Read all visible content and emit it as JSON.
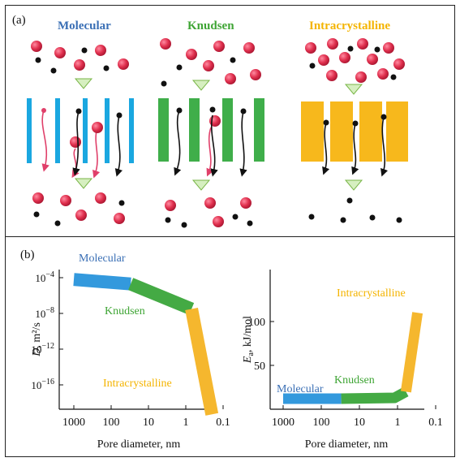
{
  "panel_a": {
    "label": "(a)",
    "mechanisms": [
      {
        "name": "Molecular",
        "color": "#3a6fb5"
      },
      {
        "name": "Knudsen",
        "color": "#3fa535"
      },
      {
        "name": "Intracrystalline",
        "color": "#f4b400"
      }
    ]
  },
  "panel_b": {
    "label": "(b)",
    "colors": {
      "molecular": "#3399dd",
      "knudsen": "#44aa44",
      "intracrystalline": "#f5b72e"
    },
    "text_colors": {
      "molecular": "#3a6fb5",
      "knudsen": "#3fa535",
      "intracrystalline": "#f4b400"
    }
  },
  "chart_data": [
    {
      "type": "line",
      "xlabel": "Pore diameter, nm",
      "ylabel_main": "D",
      "ylabel_unit": ", m²/s",
      "xscale": "log",
      "x_reversed": true,
      "xticks": [
        "1000",
        "100",
        "10",
        "1",
        "0.1"
      ],
      "yticks": [
        {
          "base": "10",
          "exp": "−4"
        },
        {
          "base": "10",
          "exp": "−8"
        },
        {
          "base": "10",
          "exp": "−12"
        },
        {
          "base": "10",
          "exp": "−16"
        }
      ],
      "series": [
        {
          "name": "Molecular",
          "x": [
            1000,
            30
          ],
          "y": [
            -4.2,
            -4.7
          ]
        },
        {
          "name": "Knudsen",
          "x": [
            30,
            0.7
          ],
          "y": [
            -4.7,
            -7.5
          ]
        },
        {
          "name": "Intracrystalline",
          "x": [
            0.7,
            0.2
          ],
          "y": [
            -7.5,
            -19.3
          ]
        }
      ]
    },
    {
      "type": "line",
      "xlabel": "Pore diameter, nm",
      "ylabel_main": "E",
      "ylabel_sub": "a",
      "ylabel_unit": ", kJ/mol",
      "xscale": "log",
      "x_reversed": true,
      "xticks": [
        "1000",
        "100",
        "10",
        "1",
        "0.1"
      ],
      "yticks": [
        "100",
        "50"
      ],
      "series": [
        {
          "name": "Molecular",
          "x": [
            1000,
            30
          ],
          "y": [
            12,
            12
          ]
        },
        {
          "name": "Knudsen",
          "x": [
            30,
            1.2,
            0.6
          ],
          "y": [
            12,
            13,
            20
          ]
        },
        {
          "name": "Intracrystalline",
          "x": [
            0.6,
            0.3
          ],
          "y": [
            20,
            110
          ]
        }
      ]
    }
  ]
}
